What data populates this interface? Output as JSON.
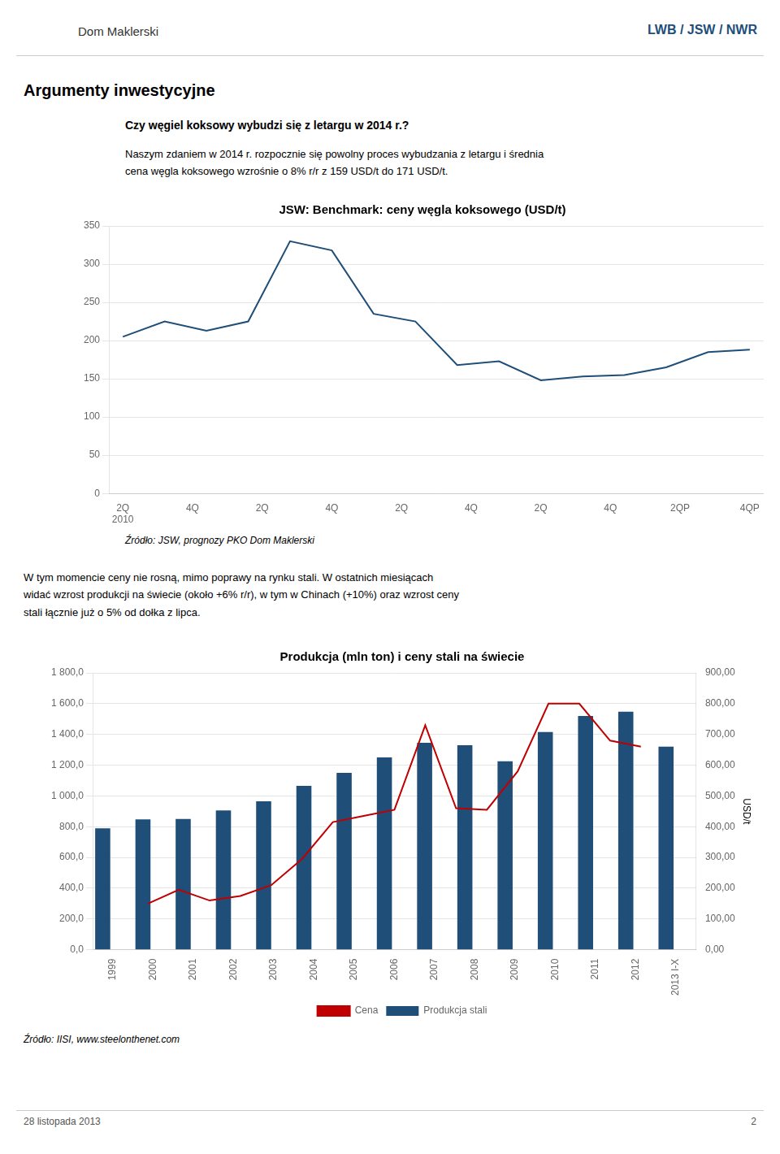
{
  "header_title": "Dom Maklerski",
  "header_right": "LWB / JSW / NWR",
  "page_title": "Argumenty inwestycyjne",
  "section1_title": "Czy węgiel koksowy wybudzi się z letargu w 2014 r.?",
  "section1_text": "Naszym zdaniem w 2014 r. rozpocznie się powolny proces wybudzania z letargu i średnia\ncena węgla koksowego wzrośnie o 8% r/r z 159 USD/t do 171 USD/t.",
  "section2_text": "W tym momencie ceny nie rosną, mimo poprawy na rynku stali. W ostatnich miesiącach\nwidać wzrost produkcji na świecie (około +6% r/r), w tym w Chinach (+10%) oraz wzrost ceny\nstali łącznie już o 5% od dołka z lipca.",
  "footer_left": "28 listopada 2013",
  "footer_right": "2",
  "chart_data": [
    {
      "type": "line",
      "title": "JSW: Benchmark: ceny węgla koksowego (USD/t)",
      "source": "Źródło: JSW, prognozy PKO Dom Maklerski",
      "x": [
        0,
        0.6,
        1.2,
        1.8,
        2.4,
        3,
        3.6,
        4.2,
        4.8,
        5.4,
        6,
        6.6,
        7.2,
        7.8,
        8.4,
        9
      ],
      "values": [
        205,
        225,
        213,
        225,
        330,
        318,
        235,
        225,
        168,
        173,
        148,
        153,
        155,
        165,
        185,
        188
      ],
      "color": "#1F4E79",
      "marker": "none",
      "xlim": [
        -0.2,
        9.2
      ],
      "xticks": [
        {
          "value": 0,
          "label": "2Q\n2010"
        },
        {
          "value": 1,
          "label": "4Q"
        },
        {
          "value": 2,
          "label": "2Q"
        },
        {
          "value": 3,
          "label": "4Q"
        },
        {
          "value": 4,
          "label": "2Q"
        },
        {
          "value": 5,
          "label": "4Q"
        },
        {
          "value": 6,
          "label": "2Q"
        },
        {
          "value": 7,
          "label": "4Q"
        },
        {
          "value": 8,
          "label": "2QP"
        },
        {
          "value": 9,
          "label": "4QP"
        }
      ],
      "ylim": [
        0,
        350
      ],
      "yticks": [
        0,
        50,
        100,
        150,
        200,
        250,
        300,
        350
      ],
      "grid": "y"
    },
    {
      "type": "bar",
      "title": "Produkcja (mln ton) i ceny stali na świecie",
      "source": "Źródło: IISI,  www.steelonthenet.com",
      "y2_label": "USD/t",
      "categories": [
        "1999",
        "2000",
        "2001",
        "2002",
        "2003",
        "2004",
        "2005",
        "2006",
        "2007",
        "2008",
        "2009",
        "2010",
        "2011",
        "2012",
        "2013 I-X"
      ],
      "series": [
        {
          "name": "Produkcja stali",
          "type": "bar",
          "color": "#1F4E79",
          "values": [
            790,
            848,
            850,
            905,
            965,
            1065,
            1150,
            1250,
            1345,
            1330,
            1225,
            1415,
            1520,
            1548,
            1320
          ]
        },
        {
          "name": "Cena",
          "type": "line",
          "color": "#C00000",
          "marker": "none",
          "axis": "y2",
          "x": [
            0,
            0.875,
            1.75,
            2.625,
            3.5,
            4.375,
            5.25,
            6.125,
            7,
            7.875,
            8.75,
            9.625,
            10.5,
            11.375,
            12.25,
            13.125,
            14
          ],
          "values": [
            150,
            195,
            160,
            175,
            210,
            295,
            415,
            435,
            455,
            730,
            460,
            455,
            580,
            800,
            800,
            680,
            660
          ]
        }
      ],
      "ylim": [
        0,
        1800
      ],
      "yticks": [
        {
          "value": 0,
          "label": "0,0"
        },
        {
          "value": 200,
          "label": "200,0"
        },
        {
          "value": 400,
          "label": "400,0"
        },
        {
          "value": 600,
          "label": "600,0"
        },
        {
          "value": 800,
          "label": "800,0"
        },
        {
          "value": 1000,
          "label": "1 000,0"
        },
        {
          "value": 1200,
          "label": "1 200,0"
        },
        {
          "value": 1400,
          "label": "1 400,0"
        },
        {
          "value": 1600,
          "label": "1 600,0"
        },
        {
          "value": 1800,
          "label": "1 800,0"
        }
      ],
      "y2lim": [
        0,
        900
      ],
      "y2ticks": [
        {
          "value": 0,
          "label": "0,00"
        },
        {
          "value": 100,
          "label": "100,00"
        },
        {
          "value": 200,
          "label": "200,00"
        },
        {
          "value": 300,
          "label": "300,00"
        },
        {
          "value": 400,
          "label": "400,00"
        },
        {
          "value": 500,
          "label": "500,00"
        },
        {
          "value": 600,
          "label": "600,00"
        },
        {
          "value": 700,
          "label": "700,00"
        },
        {
          "value": 800,
          "label": "800,00"
        },
        {
          "value": 900,
          "label": "900,00"
        }
      ],
      "grid": "y",
      "legend": "bottom"
    }
  ]
}
